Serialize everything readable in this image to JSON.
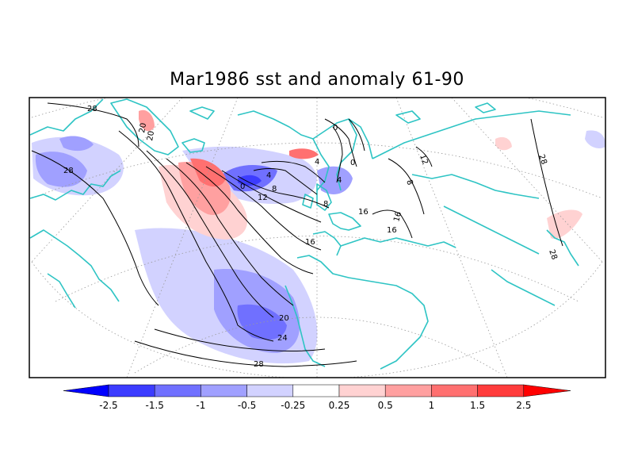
{
  "title": "Mar1986 sst and anomaly 61-90",
  "colors": {
    "coast": "#2ec4c4",
    "contour": "#000000",
    "grid": "#9a9a9a",
    "frame": "#000000"
  },
  "contour_labels": [
    "28",
    "20",
    "20",
    "28",
    "0",
    "4",
    "8",
    "12",
    "0",
    "4",
    "0",
    "4",
    "8",
    "16",
    "16",
    "16",
    "8",
    "12",
    "16",
    "20",
    "24",
    "28",
    "28",
    "28"
  ],
  "colorbar": {
    "colors": [
      "#0000ff",
      "#3c3cff",
      "#7070ff",
      "#a0a0ff",
      "#d2d2ff",
      "#ffffff",
      "#ffd2d2",
      "#ffa0a0",
      "#ff7070",
      "#ff3c3c",
      "#ff0000"
    ],
    "labels": [
      "-2.5",
      "-1.5",
      "-1",
      "-0.5",
      "-0.25",
      "0.25",
      "0.5",
      "1",
      "1.5",
      "2.5"
    ]
  }
}
